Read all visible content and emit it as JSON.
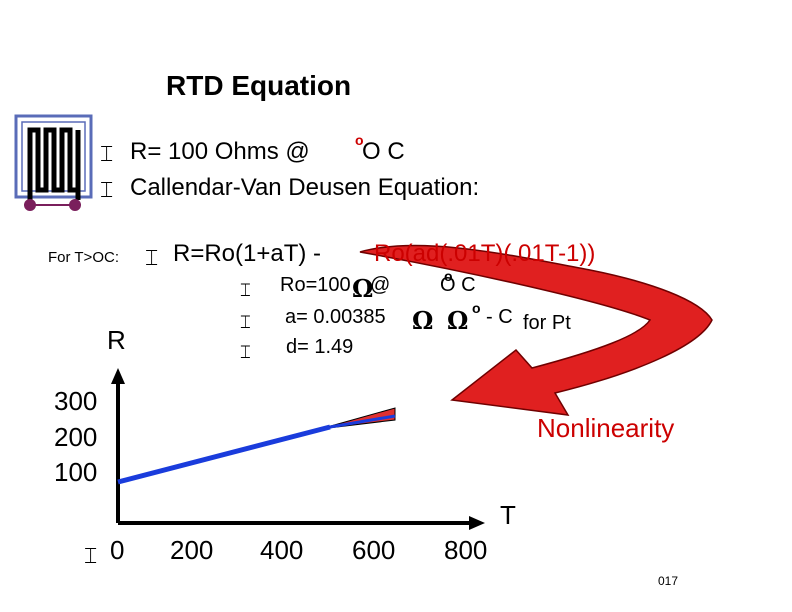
{
  "title": "RTD Equation",
  "bullets_top": [
    {
      "text": "R= 100 Ohms @",
      "deg": "o",
      "after": "O  C"
    },
    {
      "text": "Callendar-Van Deusen Equation:"
    }
  ],
  "for_label": "For T>OC:",
  "equation": {
    "black": "R=Ro(1+aT) - ",
    "red": "Ro(ad(.01T)(.01T-1))"
  },
  "params": [
    {
      "pre": "Ro=100",
      "omega": "Ω",
      "mid": "  @ ",
      "deg": "o",
      "post": "O  C"
    },
    {
      "pre": "a= 0.00385",
      "omega": "Ω",
      "omega2": "Ω",
      "deg": "o",
      "post": "- C",
      "suffix": "for Pt"
    },
    {
      "pre": "d= 1.49"
    }
  ],
  "bullet_glyph": "⌶",
  "axis": {
    "ylabel": "R",
    "xlabel": "T",
    "yticks": [
      "300",
      "200",
      "100"
    ],
    "xticks": [
      "0",
      "200",
      "400",
      "600",
      "800"
    ]
  },
  "nonlinearity_label": "Nonlinearity",
  "slide_number": "017",
  "colors": {
    "line": "#1a3cdc",
    "red": "#cc0000",
    "icon_dot": "#7a1f5c",
    "icon_frame": "#5a6cb8"
  }
}
